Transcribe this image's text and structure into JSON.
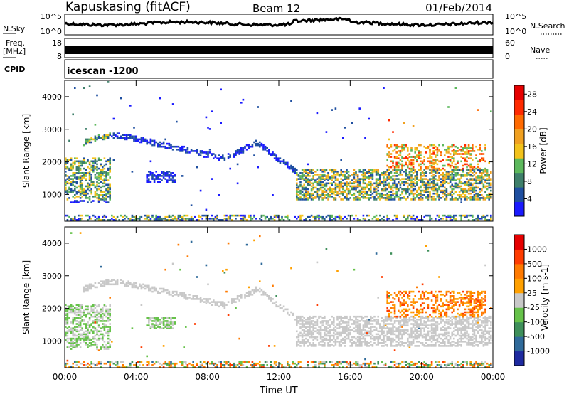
{
  "header": {
    "station": "Kapuskasing (fitACF)",
    "beam": "Beam 12",
    "date": "01/Feb/2014"
  },
  "nsky_panel": {
    "left_label": "N.Sky",
    "right_label": "N.Search",
    "left_ticks": [
      "10^5",
      "10^0"
    ],
    "right_ticks": [
      "10^5",
      "10^0"
    ]
  },
  "freq_panel": {
    "left_label_1": "Freq.",
    "left_label_2": "[MHz]",
    "right_label": "Nave",
    "left_ticks": [
      "18",
      "8"
    ],
    "right_ticks": [
      "60",
      "0"
    ]
  },
  "cpid_panel": {
    "label": "CPID",
    "program": "icescan -1200"
  },
  "colors": {
    "power_scale": [
      "#1a1aff",
      "#1f4fa0",
      "#3e7f6a",
      "#5cb85c",
      "#f2c21b",
      "#f0a020",
      "#ff6a00",
      "#ff2a00",
      "#e60000"
    ],
    "velocity_scale": [
      "#1e2aa0",
      "#2f6a9a",
      "#3e8f5a",
      "#66c24a",
      "#c8c8c8",
      "#ffa000",
      "#ff7a00",
      "#ff3c00",
      "#e60000"
    ]
  },
  "chart_data": [
    {
      "type": "heatmap",
      "title": "Power",
      "ylabel": "Slant Range [km]",
      "yticks": [
        1000,
        2000,
        3000,
        4000
      ],
      "ylim": [
        180,
        4500
      ],
      "xlim": [
        0,
        24
      ],
      "xticks": [
        "00:00",
        "04:00",
        "08:00",
        "12:00",
        "16:00",
        "20:00",
        "00:00"
      ],
      "colorbar": {
        "label": "Power [dB]",
        "ticks": [
          4,
          8,
          12,
          16,
          20,
          24,
          28
        ],
        "range": [
          0,
          30
        ]
      },
      "features": [
        {
          "name": "ground scatter arc",
          "t_start": 0.5,
          "t_end": 14.0,
          "range_km": [
            1000,
            2900
          ]
        },
        {
          "name": "near-range band",
          "t_start": 0.0,
          "t_end": 24.0,
          "range_km": [
            200,
            400
          ]
        },
        {
          "name": "main echo band",
          "t_start": 13.0,
          "t_end": 24.0,
          "range_km": [
            800,
            1800
          ]
        }
      ]
    },
    {
      "type": "heatmap",
      "title": "Velocity",
      "ylabel": "Slant Range [km]",
      "yticks": [
        1000,
        2000,
        3000,
        4000
      ],
      "ylim": [
        180,
        4500
      ],
      "xlim": [
        0,
        24
      ],
      "xlabel": "Time UT",
      "xticks": [
        "00:00",
        "04:00",
        "08:00",
        "12:00",
        "16:00",
        "20:00",
        "00:00"
      ],
      "colorbar": {
        "label": "Velocity [m s-1]",
        "ticks": [
          1000,
          500,
          100,
          25,
          -25,
          -100,
          -500,
          -1000
        ]
      },
      "features": [
        {
          "name": "ground scatter (grey)",
          "t_start": 0.5,
          "t_end": 24.0,
          "range_km": [
            900,
            2900
          ]
        },
        {
          "name": "receding echoes (orange)",
          "t_start": 18.0,
          "t_end": 23.5,
          "range_km": [
            1700,
            2600
          ]
        }
      ]
    }
  ]
}
